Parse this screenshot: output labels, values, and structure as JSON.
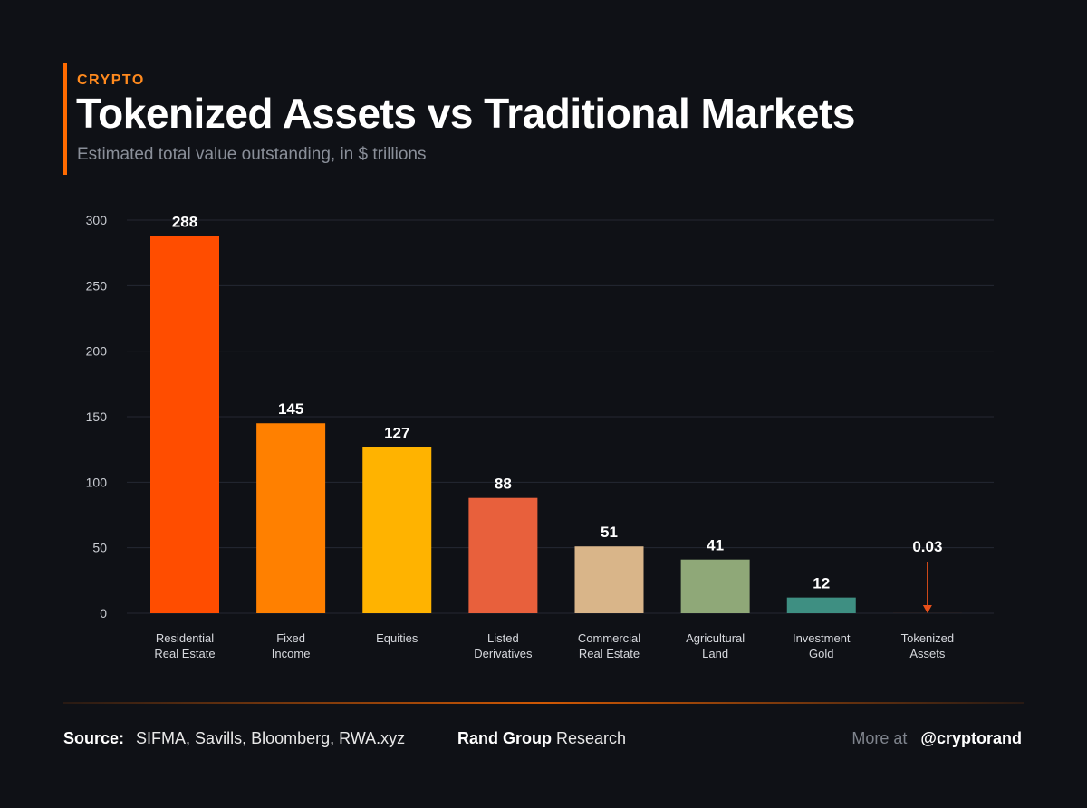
{
  "header": {
    "kicker": "CRYPTO",
    "title": "Tokenized Assets vs Traditional Markets",
    "subtitle": "Estimated total value outstanding, in $ trillions"
  },
  "footer": {
    "source_label": "Source:",
    "source_text": "SIFMA, Savills, Bloomberg, RWA.xyz",
    "brand_bold": "Rand Group",
    "brand_rest": "Research",
    "more_label": "More at",
    "handle": "@cryptorand"
  },
  "colors": {
    "background": "#0f1116",
    "accent": "#ff6a00"
  },
  "chart_data": {
    "type": "bar",
    "title": "Tokenized Assets vs Traditional Markets",
    "subtitle": "Estimated total value outstanding, in $ trillions",
    "xlabel": "",
    "ylabel": "",
    "ylim": [
      0,
      300
    ],
    "yticks": [
      0,
      50,
      100,
      150,
      200,
      250,
      300
    ],
    "grid": true,
    "categories": [
      [
        "Residential",
        "Real Estate"
      ],
      [
        "Fixed",
        "Income"
      ],
      [
        "Equities"
      ],
      [
        "Listed",
        "Derivatives"
      ],
      [
        "Commercial",
        "Real Estate"
      ],
      [
        "Agricultural",
        "Land"
      ],
      [
        "Investment",
        "Gold"
      ],
      [
        "Tokenized",
        "Assets"
      ]
    ],
    "values": [
      288,
      145,
      127,
      88,
      51,
      41,
      12,
      0.03
    ],
    "value_labels": [
      "288",
      "145",
      "127",
      "88",
      "51",
      "41",
      "12",
      "0.03"
    ],
    "bar_colors": [
      "#ff4d00",
      "#ff8000",
      "#ffb300",
      "#e8603c",
      "#d9b589",
      "#8fa878",
      "#3e8f82",
      "#ff4d00"
    ],
    "annotation": {
      "category_index": 7,
      "type": "down-arrow",
      "color": "#e8501a"
    }
  }
}
